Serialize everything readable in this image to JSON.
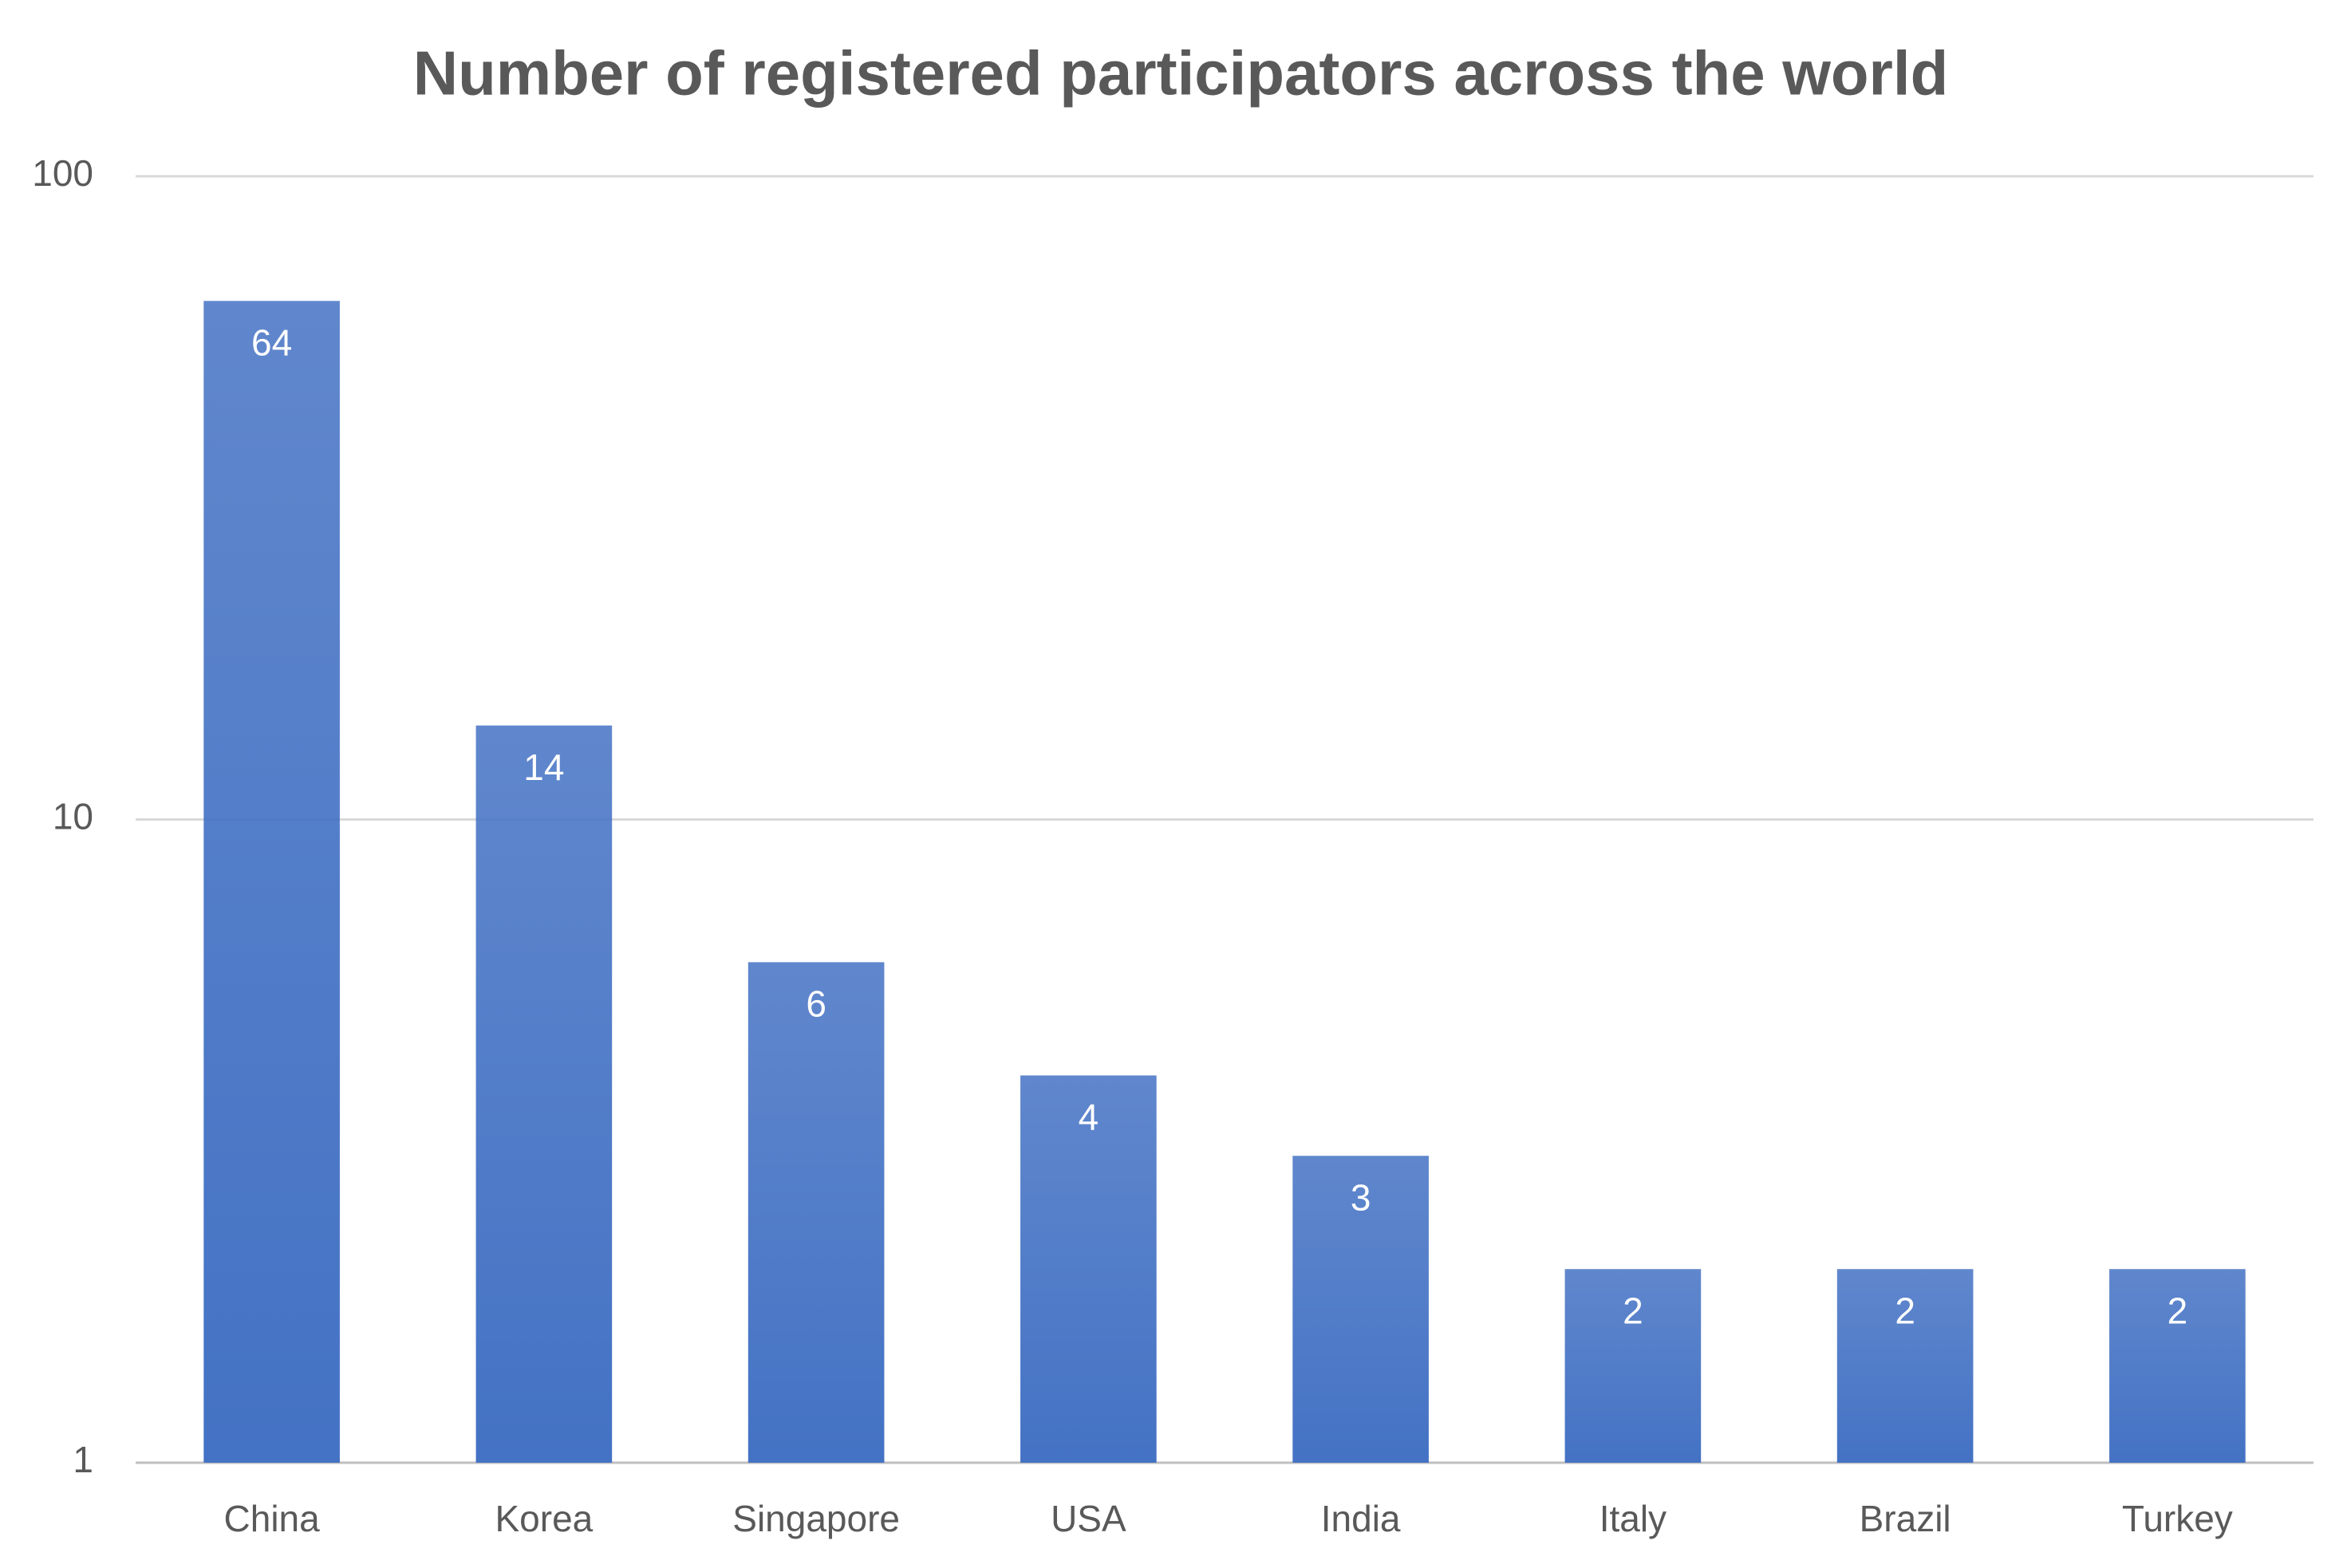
{
  "chart_data": {
    "type": "bar",
    "title": "Number of registered participators across the world",
    "categories": [
      "China",
      "Korea",
      "Singapore",
      "USA",
      "India",
      "Italy",
      "Brazil",
      "Turkey"
    ],
    "values": [
      64,
      14,
      6,
      4,
      3,
      2,
      2,
      2
    ],
    "color": "#4472c4",
    "yscale": "log",
    "ylim": [
      1,
      100
    ],
    "yticks": [
      1,
      10,
      100
    ],
    "grid": true
  }
}
